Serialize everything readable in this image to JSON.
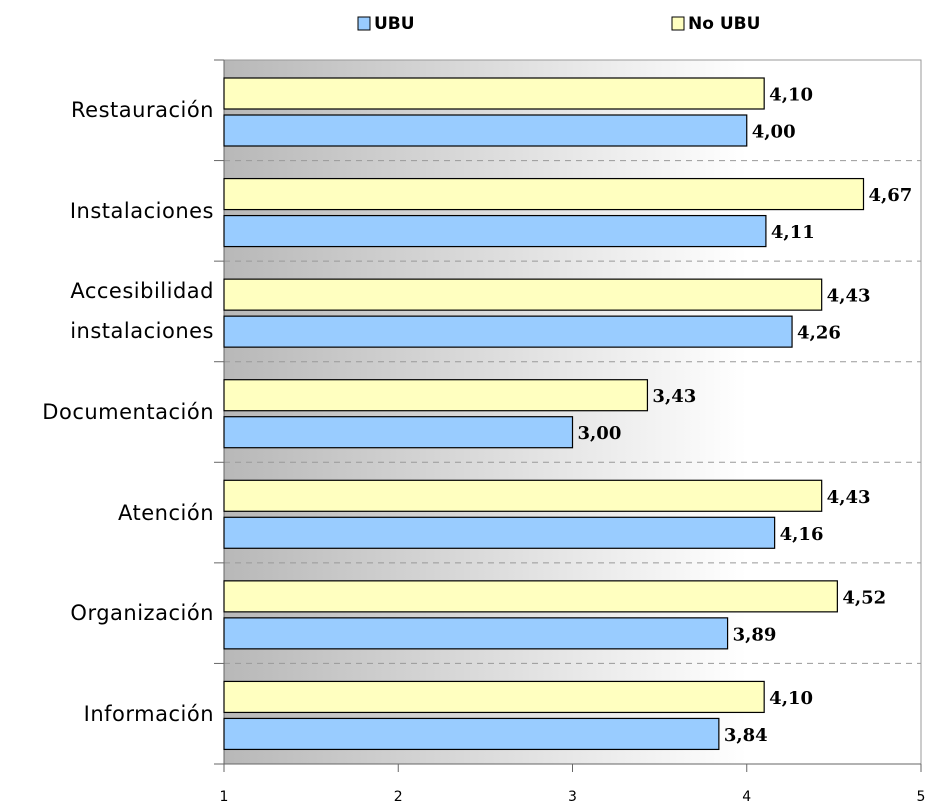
{
  "chart_data": {
    "type": "bar",
    "orientation": "horizontal",
    "categories": [
      "Restauración",
      "Instalaciones",
      "Accesibilidad instalaciones",
      "Documentación",
      "Atención",
      "Organización",
      "Información"
    ],
    "series": [
      {
        "name": "UBU",
        "color": "#99ccff",
        "values": [
          4.0,
          4.11,
          4.26,
          3.0,
          4.16,
          3.89,
          3.84
        ],
        "value_labels": [
          "4,00",
          "4,11",
          "4,26",
          "3,00",
          "4,16",
          "3,89",
          "3,84"
        ]
      },
      {
        "name": "No UBU",
        "color": "#ffffc0",
        "values": [
          4.1,
          4.67,
          4.43,
          3.43,
          4.43,
          4.52,
          4.1
        ],
        "value_labels": [
          "4,10",
          "4,67",
          "4,43",
          "3,43",
          "4,43",
          "4,52",
          "4,10"
        ]
      }
    ],
    "xlim": [
      1,
      5
    ],
    "xticks": [
      1,
      2,
      3,
      4,
      5
    ],
    "legend": "top"
  }
}
